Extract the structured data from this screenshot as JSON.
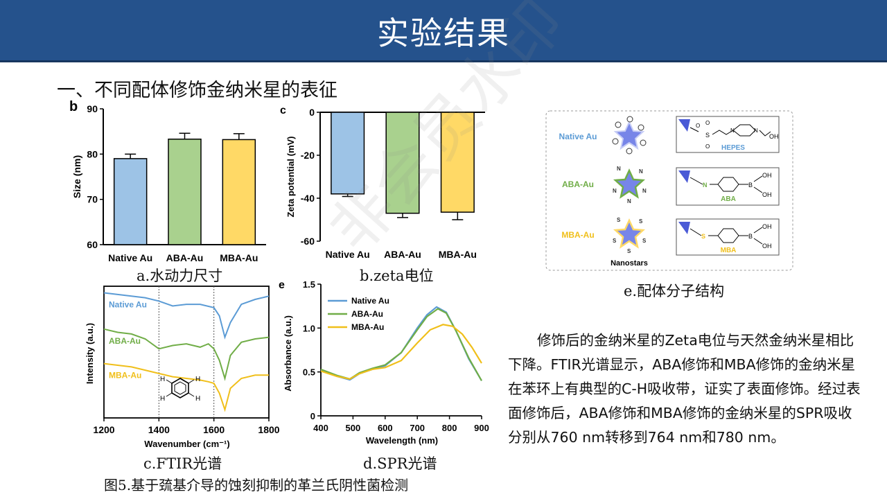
{
  "header": {
    "title": "实验结果"
  },
  "section_title": "一、不同配体修饰金纳米星的表征",
  "watermark": "非会员水印",
  "captions": {
    "a": "a.水动力尺寸",
    "b": "b.zeta电位",
    "c": "c.FTIR光谱",
    "d": "d.SPR光谱",
    "e": "e.配体分子结构"
  },
  "figure_caption": "图5.基于巯基介导的蚀刻抑制的革兰氏阴性菌检测",
  "paragraph": "修饰后的金纳米星的Zeta电位与天然金纳米星相比下降。FTIR光谱显示，ABA修饰和MBA修饰的金纳米星在苯环上有典型的C-H吸收带，证实了表面修饰。经过表面修饰后，ABA修饰和MBA修饰的金纳米星的SPR吸收分别从760 nm转移到764 nm和780 nm。",
  "colors": {
    "native": "#9dc3e6",
    "aba": "#a9d18e",
    "mba": "#ffd966",
    "native_line": "#5b9bd5",
    "aba_line": "#70ad47",
    "mba_line": "#f0bf1a",
    "header": "#25528c"
  },
  "chart_data": [
    {
      "type": "bar",
      "panel_label": "b",
      "categories": [
        "Native Au",
        "ABA-Au",
        "MBA-Au"
      ],
      "values": [
        79,
        83.3,
        83.2
      ],
      "errors": [
        1.0,
        1.3,
        1.3
      ],
      "ylabel": "Size (nm)",
      "ylim": [
        60,
        90
      ],
      "yticks": [
        "60",
        "70",
        "80",
        "90"
      ]
    },
    {
      "type": "bar",
      "panel_label": "c",
      "categories": [
        "Native Au",
        "ABA-Au",
        "MBA-Au"
      ],
      "values": [
        -38,
        -47,
        -46.5
      ],
      "errors": [
        1.2,
        2.0,
        3.5
      ],
      "ylabel": "Zeta potential (mV)",
      "ylim": [
        -60,
        0
      ],
      "yticks": [
        "0",
        "-20",
        "-40",
        "-60"
      ]
    },
    {
      "type": "line",
      "xlabel": "Wavenumber (cm⁻¹)",
      "ylabel": "Intensity (a.u.)",
      "xlim": [
        1200,
        1800
      ],
      "xticks": [
        "1200",
        "1400",
        "1600",
        "1800"
      ],
      "series": [
        {
          "name": "Native Au",
          "x": [
            1200,
            1250,
            1300,
            1350,
            1400,
            1450,
            1500,
            1550,
            1600,
            1620,
            1640,
            1660,
            1700,
            1750,
            1800
          ],
          "y": [
            7.6,
            7.5,
            7.4,
            7.3,
            7.1,
            6.8,
            6.9,
            6.9,
            6.7,
            6.2,
            4.9,
            5.8,
            6.9,
            7.2,
            7.4
          ]
        },
        {
          "name": "ABA-Au",
          "x": [
            1200,
            1250,
            1300,
            1350,
            1400,
            1450,
            1500,
            1550,
            1580,
            1600,
            1620,
            1640,
            1660,
            1700,
            1750,
            1800
          ],
          "y": [
            5.4,
            5.2,
            5.1,
            4.8,
            4.2,
            4.4,
            4.5,
            4.3,
            4.5,
            4.2,
            3.5,
            2.4,
            3.8,
            4.6,
            4.8,
            4.9
          ]
        },
        {
          "name": "MBA-Au",
          "x": [
            1200,
            1250,
            1300,
            1350,
            1400,
            1450,
            1500,
            1550,
            1580,
            1600,
            1620,
            1640,
            1660,
            1700,
            1750,
            1800
          ],
          "y": [
            3.3,
            3.2,
            3.1,
            2.9,
            2.7,
            2.5,
            2.4,
            2.3,
            2.2,
            2.1,
            1.5,
            0.5,
            1.8,
            2.4,
            2.6,
            2.6
          ]
        }
      ]
    },
    {
      "type": "line",
      "panel_label": "e",
      "xlabel": "Wavelength (nm)",
      "ylabel": "Absorbance (a.u.)",
      "xlim": [
        400,
        900
      ],
      "ylim": [
        0,
        1.5
      ],
      "xticks": [
        "400",
        "500",
        "600",
        "700",
        "800",
        "900"
      ],
      "yticks": [
        "0",
        "0.5",
        "1.0",
        "1.5"
      ],
      "series": [
        {
          "name": "Native Au",
          "x": [
            400,
            450,
            490,
            520,
            560,
            600,
            650,
            700,
            730,
            760,
            790,
            820,
            860,
            900
          ],
          "y": [
            0.52,
            0.45,
            0.41,
            0.48,
            0.53,
            0.57,
            0.72,
            1.0,
            1.15,
            1.24,
            1.18,
            0.97,
            0.65,
            0.4
          ]
        },
        {
          "name": "ABA-Au",
          "x": [
            400,
            450,
            490,
            520,
            560,
            600,
            650,
            700,
            730,
            764,
            790,
            820,
            860,
            900
          ],
          "y": [
            0.53,
            0.46,
            0.42,
            0.49,
            0.54,
            0.58,
            0.72,
            0.98,
            1.13,
            1.22,
            1.17,
            0.97,
            0.66,
            0.4
          ]
        },
        {
          "name": "MBA-Au",
          "x": [
            400,
            450,
            490,
            520,
            560,
            600,
            650,
            700,
            740,
            780,
            810,
            840,
            870,
            900
          ],
          "y": [
            0.51,
            0.45,
            0.42,
            0.48,
            0.53,
            0.55,
            0.63,
            0.83,
            0.98,
            1.04,
            1.02,
            0.93,
            0.78,
            0.6
          ]
        }
      ]
    }
  ],
  "ligands": {
    "rows": [
      {
        "name": "Native Au",
        "molecule": "HEPES",
        "marker": "⊖"
      },
      {
        "name": "ABA-Au",
        "molecule": "ABA",
        "marker": "N"
      },
      {
        "name": "MBA-Au",
        "molecule": "MBA",
        "marker": "S"
      }
    ],
    "footer": "Nanostars",
    "atoms": {
      "o": "O",
      "s": "S",
      "n": "N",
      "oh": "OH",
      "b": "B"
    }
  }
}
